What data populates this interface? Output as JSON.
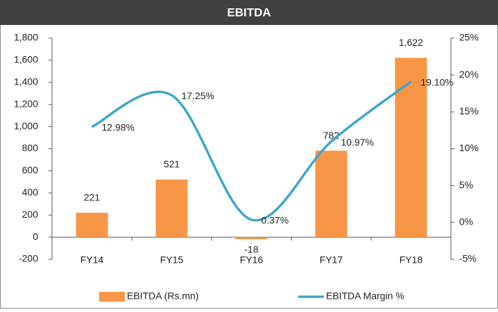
{
  "chart_data": {
    "type": "bar-line",
    "title": "EBITDA",
    "categories": [
      "FY14",
      "FY15",
      "FY16",
      "FY17",
      "FY18"
    ],
    "series": [
      {
        "name": "EBITDA (Rs.mn)",
        "type": "bar",
        "color": "#f79646",
        "values": [
          221,
          521,
          -18,
          782,
          1622
        ],
        "value_labels": [
          "221",
          "521",
          "-18",
          "782",
          "1,622"
        ]
      },
      {
        "name": "EBITDA Margin %",
        "type": "line",
        "axis": "y2",
        "color": "#3ca6c9",
        "values": [
          12.98,
          17.25,
          0.37,
          10.97,
          19.1
        ],
        "value_labels": [
          "12.98%",
          "17.25%",
          "0.37%",
          "10.97%",
          "19.10%"
        ]
      }
    ],
    "ylim": [
      -200,
      1800
    ],
    "yticks": [
      -200,
      0,
      200,
      400,
      600,
      800,
      {
        "value": 1000,
        "label": "1,000"
      },
      {
        "value": 1200,
        "label": "1,200"
      },
      {
        "value": 1400,
        "label": "1,400"
      },
      {
        "value": 1600,
        "label": "1,600"
      },
      {
        "value": 1800,
        "label": "1,800"
      }
    ],
    "y2lim": [
      -5,
      25
    ],
    "y2ticks": [
      {
        "value": -5,
        "label": "-5%"
      },
      {
        "value": 0,
        "label": "0%"
      },
      {
        "value": 5,
        "label": "5%"
      },
      {
        "value": 10,
        "label": "10%"
      },
      {
        "value": 15,
        "label": "15%"
      },
      {
        "value": 20,
        "label": "20%"
      },
      {
        "value": 25,
        "label": "25%"
      }
    ],
    "legend": "bottom",
    "smooth": true
  }
}
